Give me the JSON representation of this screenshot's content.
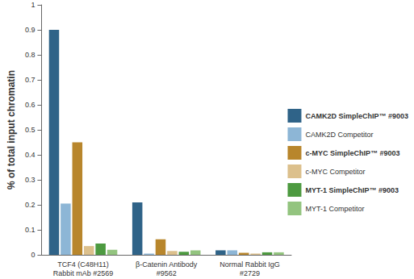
{
  "chart_data": {
    "type": "bar",
    "y_label": "% of total input chromatin",
    "categories": [
      "TCF4 (C48H11)\nRabbit mAb #2569",
      "β-Catenin Antibody\n#9562",
      "Normal Rabbit IgG\n#2729"
    ],
    "series": [
      {
        "name": "CAMK2D SimpleChIP™ #9003",
        "color": "#2f6388",
        "values": [
          0.9,
          0.21,
          0.018
        ]
      },
      {
        "name": "CAMK2D Competitor",
        "color": "#8db6d6",
        "values": [
          0.205,
          0.005,
          0.018
        ]
      },
      {
        "name": "c-MYC SimpleChIP™ #9003",
        "color": "#b8862c",
        "values": [
          0.45,
          0.062,
          0.008
        ]
      },
      {
        "name": "c-MYC Competitor",
        "color": "#dcc08c",
        "values": [
          0.035,
          0.015,
          0.005
        ]
      },
      {
        "name": "MYT-1 SimpleChIP™ #9003",
        "color": "#4d9a40",
        "values": [
          0.045,
          0.012,
          0.01
        ]
      },
      {
        "name": "MYT-1 Competitor",
        "color": "#93c47f",
        "values": [
          0.02,
          0.018,
          0.01
        ]
      }
    ],
    "ylim": [
      0,
      1
    ],
    "yticks": [
      0,
      0.1,
      0.2,
      0.3,
      0.4,
      0.5,
      0.6,
      0.7,
      0.8,
      0.9,
      1
    ],
    "grid": false,
    "legend": "right"
  }
}
